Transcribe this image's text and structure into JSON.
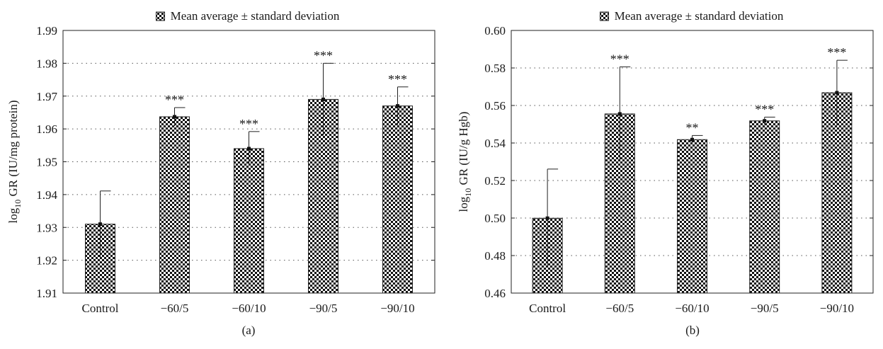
{
  "chart_data": [
    {
      "type": "bar",
      "panel_label": "(a)",
      "legend": "Mean average ± standard deviation",
      "legend_placement": "top-center",
      "ylabel": "log10 GR (IU/mg protein)",
      "ylabel_parts": {
        "prefix": "log",
        "subscript": "10",
        "suffix": " GR (IU/mg protein)"
      },
      "ylim": [
        1.91,
        1.99
      ],
      "yticks": [
        1.91,
        1.92,
        1.93,
        1.94,
        1.95,
        1.96,
        1.97,
        1.98,
        1.99
      ],
      "ytick_labels": [
        "1.91",
        "1.92",
        "1.93",
        "1.94",
        "1.95",
        "1.96",
        "1.97",
        "1.98",
        "1.99"
      ],
      "grid": true,
      "categories": [
        "Control",
        "−60/5",
        "−60/10",
        "−90/5",
        "−90/10"
      ],
      "values": [
        1.931,
        1.9637,
        1.954,
        1.969,
        1.967
      ],
      "errors": [
        0.0101,
        0.0028,
        0.0052,
        0.011,
        0.0058
      ],
      "annotations": [
        "",
        "***",
        "***",
        "***",
        "***"
      ]
    },
    {
      "type": "bar",
      "panel_label": "(b)",
      "legend": "Mean average ± standard deviation",
      "legend_placement": "top-center",
      "ylabel": "log10 GR (IU/g Hgb)",
      "ylabel_parts": {
        "prefix": "log",
        "subscript": "10",
        "suffix": " GR (IU/g Hgb)"
      },
      "ylim": [
        0.46,
        0.6
      ],
      "yticks": [
        0.46,
        0.48,
        0.5,
        0.52,
        0.54,
        0.56,
        0.58,
        0.6
      ],
      "ytick_labels": [
        "0.46",
        "0.48",
        "0.50",
        "0.52",
        "0.54",
        "0.56",
        "0.58",
        "0.60"
      ],
      "grid": true,
      "categories": [
        "Control",
        "−60/5",
        "−60/10",
        "−90/5",
        "−90/10"
      ],
      "values": [
        0.4999,
        0.5555,
        0.5418,
        0.5518,
        0.5668
      ],
      "errors": [
        0.0262,
        0.0251,
        0.0022,
        0.002,
        0.0173
      ],
      "annotations": [
        "",
        "***",
        "**",
        "***",
        "***"
      ]
    }
  ]
}
